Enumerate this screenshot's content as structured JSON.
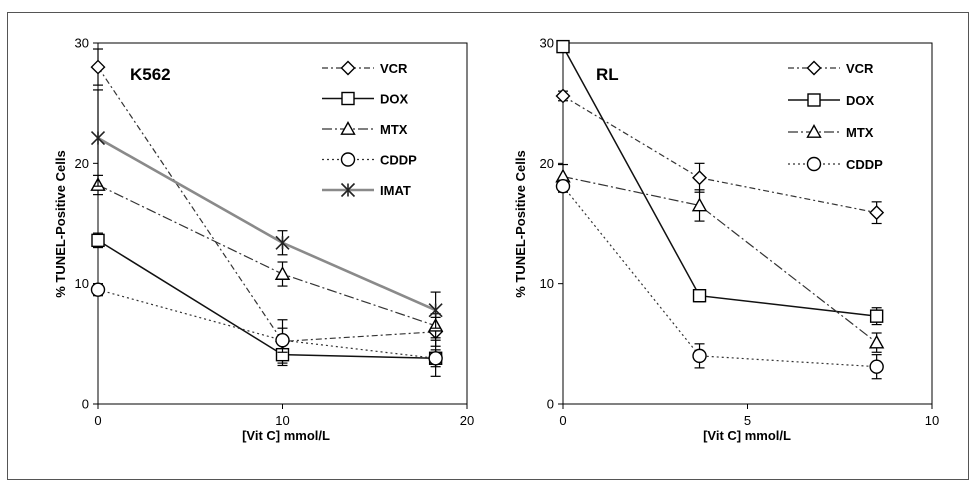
{
  "chart_data": [
    {
      "type": "line",
      "title": "K562",
      "xlabel": "[Vit C] mmol/L",
      "ylabel": "% TUNEL-Positive Cells",
      "xlim": [
        0,
        20
      ],
      "ylim": [
        0,
        30
      ],
      "xticks": [
        "0",
        "10",
        "20"
      ],
      "yticks": [
        "0",
        "10",
        "20",
        "30"
      ],
      "grid": false,
      "legend_position": "top-right",
      "series": [
        {
          "name": "VCR",
          "marker": "diamond",
          "dash": "dashdot",
          "color": "#333333",
          "x": [
            0,
            10,
            18.3
          ],
          "y": [
            28,
            5.2,
            6.0
          ],
          "err": [
            1.5,
            1.8,
            1.2
          ]
        },
        {
          "name": "DOX",
          "marker": "square",
          "dash": "solid",
          "color": "#111111",
          "x": [
            0,
            10,
            18.3
          ],
          "y": [
            13.6,
            4.1,
            3.8
          ],
          "err": [
            0.6,
            0.9,
            0.7
          ]
        },
        {
          "name": "MTX",
          "marker": "triangle",
          "dash": "longdashdot",
          "color": "#333333",
          "x": [
            0,
            10,
            18.3
          ],
          "y": [
            18.2,
            10.8,
            6.5
          ],
          "err": [
            0.8,
            1.0,
            1.0
          ]
        },
        {
          "name": "CDDP",
          "marker": "circle",
          "dash": "dotted",
          "color": "#333333",
          "x": [
            0,
            10,
            18.3
          ],
          "y": [
            9.5,
            5.3,
            3.8
          ],
          "err": [
            0.5,
            1.0,
            1.5
          ]
        },
        {
          "name": "IMAT",
          "marker": "asterisk",
          "dash": "solid",
          "color": "#8a8a8a",
          "x": [
            0,
            10,
            18.3
          ],
          "y": [
            22.1,
            13.4,
            7.8
          ],
          "err": [
            4.0,
            1.0,
            1.5
          ]
        }
      ]
    },
    {
      "type": "line",
      "title": "RL",
      "xlabel": "[Vit C] mmol/L",
      "ylabel": "% TUNEL-Positive Cells",
      "xlim": [
        0,
        10
      ],
      "ylim": [
        0,
        30
      ],
      "xticks": [
        "0",
        "5",
        "10"
      ],
      "yticks": [
        "0",
        "10",
        "20",
        "30"
      ],
      "grid": false,
      "legend_position": "top-right",
      "series": [
        {
          "name": "VCR",
          "marker": "diamond",
          "dash": "dashdot",
          "color": "#333333",
          "x": [
            0,
            3.7,
            8.5
          ],
          "y": [
            25.6,
            18.8,
            15.9
          ],
          "err": [
            0.4,
            1.2,
            0.9
          ]
        },
        {
          "name": "DOX",
          "marker": "square",
          "dash": "solid",
          "color": "#111111",
          "x": [
            0,
            3.7,
            8.5
          ],
          "y": [
            29.7,
            9.0,
            7.3
          ],
          "err": [
            0.3,
            0.5,
            0.7
          ]
        },
        {
          "name": "MTX",
          "marker": "triangle",
          "dash": "longdashdot",
          "color": "#333333",
          "x": [
            0,
            3.7,
            8.5
          ],
          "y": [
            18.9,
            16.5,
            5.1
          ],
          "err": [
            1.0,
            1.3,
            0.8
          ]
        },
        {
          "name": "CDDP",
          "marker": "circle",
          "dash": "dotted",
          "color": "#333333",
          "x": [
            0,
            3.7,
            8.5
          ],
          "y": [
            18.1,
            4.0,
            3.1
          ],
          "err": [
            0.5,
            1.0,
            1.0
          ]
        }
      ]
    }
  ]
}
